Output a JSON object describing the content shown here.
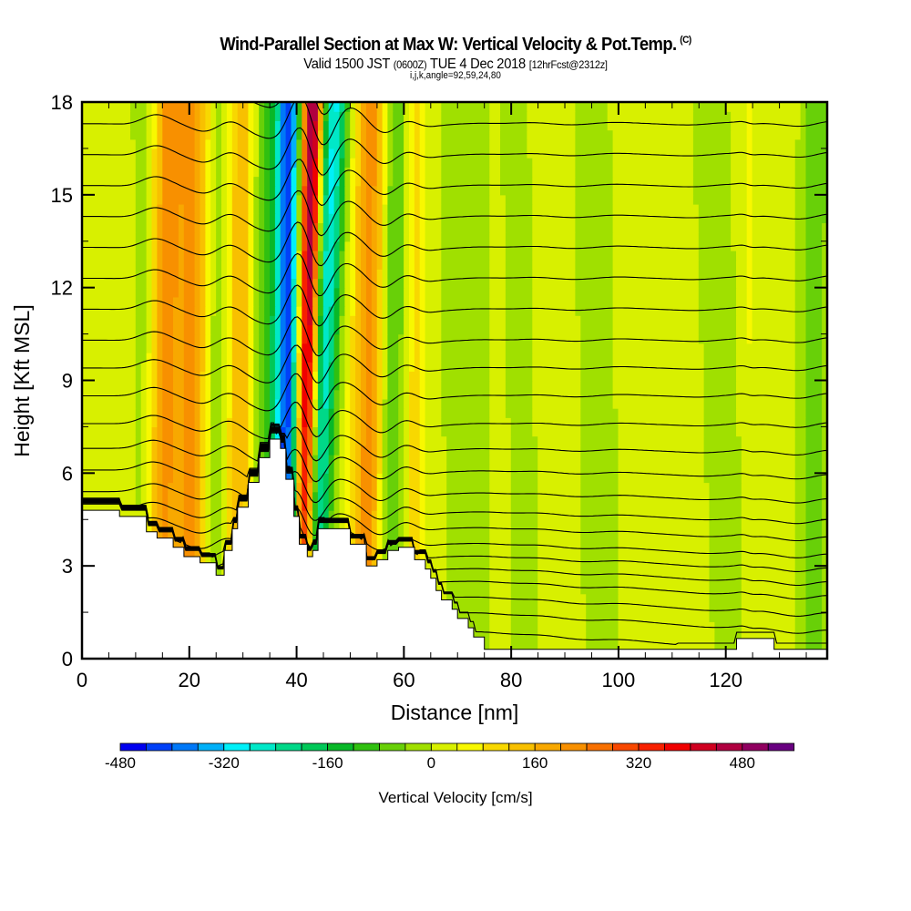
{
  "header": {
    "title": "Wind-Parallel Section at Max W: Vertical Velocity & Pot.Temp.",
    "title_mark": "(C)",
    "subtitle_main": "Valid 1500 JST",
    "subtitle_utc": "(0600Z)",
    "subtitle_date": "TUE 4 Dec 2018",
    "subtitle_fcst": "[12hrFcst@2312z]",
    "grid_info": "i,j,k,angle=92,59,24,80"
  },
  "chart_data": {
    "type": "heatmap",
    "title": "Wind-Parallel Section at Max W: Vertical Velocity & Pot.Temp.",
    "xlabel": "Distance [nm]",
    "ylabel": "Height [Kft MSL]",
    "xlim": [
      0,
      138.9
    ],
    "ylim": [
      0,
      18
    ],
    "xticks": [
      0,
      20,
      40,
      60,
      80,
      100,
      120
    ],
    "xminor_step": 5,
    "yticks": [
      0,
      3,
      6,
      9,
      12,
      15,
      18
    ],
    "yminor_step": 1.5,
    "grid": false,
    "colorbar": {
      "title": "Vertical Velocity [cm/s]",
      "placement": "bottom",
      "min": -480,
      "step": 40,
      "tick_labels": [
        -480,
        -320,
        -160,
        0,
        160,
        320,
        480
      ],
      "colors": [
        "#0000f0",
        "#0040f8",
        "#0078f8",
        "#00b0f8",
        "#00f0f8",
        "#00e8c8",
        "#00d888",
        "#00c858",
        "#08b828",
        "#30c010",
        "#68d008",
        "#a0e000",
        "#d8f000",
        "#f8f800",
        "#f8d800",
        "#f8c000",
        "#f8a800",
        "#f89000",
        "#f87000",
        "#f84800",
        "#f82000",
        "#f00000",
        "#d00020",
        "#b00040",
        "#900060",
        "#680080"
      ]
    },
    "velocity_field": {
      "units": "cm/s",
      "background": 20,
      "bands": [
        {
          "x_top_nm": 21,
          "x_bottom_nm": 20,
          "amp": 180,
          "width_nm": 3.0
        },
        {
          "x_top_nm": 26,
          "x_bottom_nm": 25,
          "amp": -80,
          "width_nm": 2.5
        },
        {
          "x_top_nm": 16,
          "x_bottom_nm": 14.5,
          "amp": 190,
          "width_nm": 3.0
        },
        {
          "x_top_nm": 12,
          "x_bottom_nm": 12,
          "amp": -60,
          "width_nm": 2.5
        },
        {
          "x_top_nm": 29.5,
          "x_bottom_nm": 29,
          "amp": 140,
          "width_nm": 3.0
        },
        {
          "x_top_nm": 34,
          "x_bottom_nm": 34,
          "amp": -100,
          "width_nm": 2.5
        },
        {
          "x_top_nm": 38.5,
          "x_bottom_nm": 38,
          "amp": -450,
          "width_nm": 2.4
        },
        {
          "x_top_nm": 43,
          "x_bottom_nm": 41,
          "amp": 520,
          "width_nm": 2.0
        },
        {
          "x_top_nm": 47,
          "x_bottom_nm": 42.5,
          "amp": -320,
          "width_nm": 2.6
        },
        {
          "x_top_nm": 54,
          "x_bottom_nm": 53,
          "amp": 200,
          "width_nm": 3.0
        },
        {
          "x_top_nm": 58.5,
          "x_bottom_nm": 57,
          "amp": -120,
          "width_nm": 2.5
        },
        {
          "x_top_nm": 62,
          "x_bottom_nm": 62,
          "amp": 80,
          "width_nm": 2.0
        },
        {
          "x_top_nm": 71,
          "x_bottom_nm": 72,
          "amp": -40,
          "width_nm": 5.0
        },
        {
          "x_top_nm": 95,
          "x_bottom_nm": 97,
          "amp": -40,
          "width_nm": 4.0
        },
        {
          "x_top_nm": 81,
          "x_bottom_nm": 83,
          "amp": -30,
          "width_nm": 3.5
        },
        {
          "x_top_nm": 117,
          "x_bottom_nm": 121,
          "amp": -40,
          "width_nm": 4.0
        },
        {
          "x_top_nm": 124,
          "x_bottom_nm": 124,
          "amp": 30,
          "width_nm": 1.0
        },
        {
          "x_top_nm": 137,
          "x_bottom_nm": 136,
          "amp": -80,
          "width_nm": 3.0
        }
      ]
    },
    "terrain_kft": [
      [
        0,
        4.8
      ],
      [
        7,
        4.8
      ],
      [
        7,
        4.6
      ],
      [
        12,
        4.6
      ],
      [
        12,
        4.1
      ],
      [
        14,
        4.1
      ],
      [
        14,
        3.9
      ],
      [
        17,
        3.9
      ],
      [
        17,
        3.6
      ],
      [
        19,
        3.6
      ],
      [
        19,
        3.3
      ],
      [
        22,
        3.3
      ],
      [
        22,
        3.1
      ],
      [
        25,
        3.1
      ],
      [
        25,
        2.7
      ],
      [
        26.5,
        2.7
      ],
      [
        26.5,
        3.5
      ],
      [
        28,
        3.5
      ],
      [
        28,
        4.2
      ],
      [
        29,
        4.2
      ],
      [
        29,
        4.9
      ],
      [
        31,
        4.9
      ],
      [
        31,
        5.7
      ],
      [
        33,
        5.7
      ],
      [
        33,
        6.5
      ],
      [
        35,
        6.5
      ],
      [
        35,
        7.1
      ],
      [
        37,
        7.1
      ],
      [
        37,
        6.8
      ],
      [
        38,
        6.8
      ],
      [
        38,
        5.8
      ],
      [
        39.5,
        5.8
      ],
      [
        39.5,
        4.6
      ],
      [
        40.5,
        4.6
      ],
      [
        40.5,
        3.7
      ],
      [
        42,
        3.7
      ],
      [
        42,
        3.3
      ],
      [
        43,
        3.3
      ],
      [
        43,
        3.5
      ],
      [
        44,
        3.5
      ],
      [
        44,
        4.2
      ],
      [
        50,
        4.2
      ],
      [
        50,
        3.7
      ],
      [
        53,
        3.7
      ],
      [
        53,
        3.0
      ],
      [
        55,
        3.0
      ],
      [
        55,
        3.2
      ],
      [
        57,
        3.2
      ],
      [
        57,
        3.5
      ],
      [
        59,
        3.5
      ],
      [
        59,
        3.6
      ],
      [
        62,
        3.6
      ],
      [
        62,
        3.2
      ],
      [
        64,
        3.2
      ],
      [
        64,
        2.9
      ],
      [
        65,
        2.9
      ],
      [
        65,
        2.6
      ],
      [
        66,
        2.6
      ],
      [
        66,
        2.2
      ],
      [
        67,
        2.2
      ],
      [
        67,
        1.9
      ],
      [
        69,
        1.9
      ],
      [
        69,
        1.6
      ],
      [
        70,
        1.6
      ],
      [
        70,
        1.3
      ],
      [
        72,
        1.3
      ],
      [
        72,
        1.0
      ],
      [
        73,
        1.0
      ],
      [
        73,
        0.7
      ],
      [
        75,
        0.7
      ],
      [
        75,
        0.3
      ],
      [
        122,
        0.3
      ],
      [
        122,
        0.65
      ],
      [
        129,
        0.65
      ],
      [
        129,
        0.3
      ],
      [
        138.9,
        0.3
      ]
    ],
    "isentropes": {
      "units": "degC",
      "base_heights_kft": [
        1.0,
        1.6,
        2.1,
        2.6,
        3.0,
        3.4,
        3.8,
        4.3,
        4.8,
        5.4,
        6.1,
        6.8,
        7.6,
        8.5,
        9.4,
        10.3,
        11.3,
        12.3,
        13.3,
        14.3,
        15.3,
        16.3,
        17.3,
        18.3
      ]
    }
  }
}
